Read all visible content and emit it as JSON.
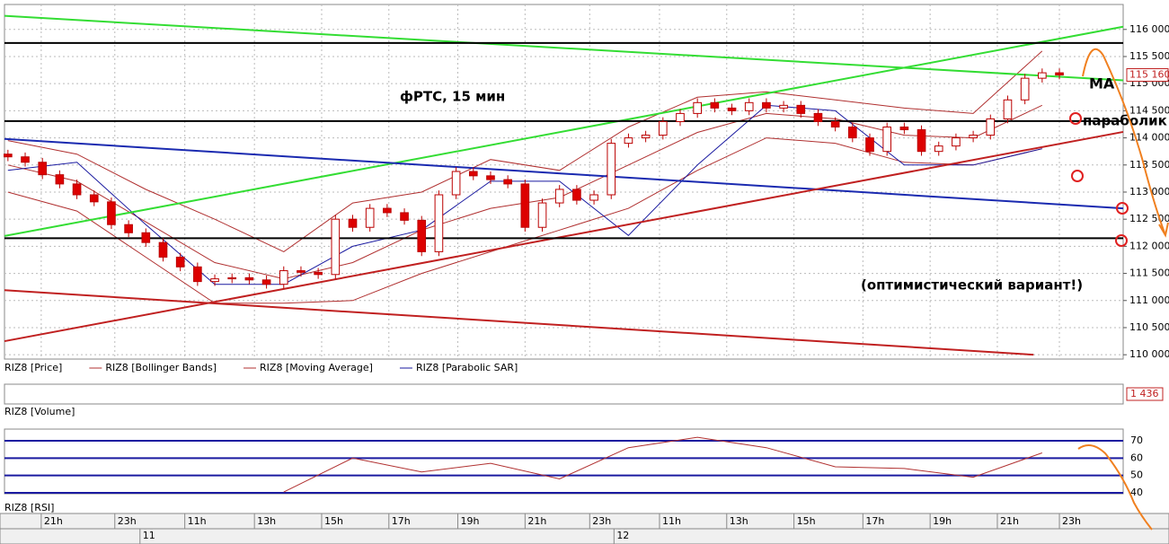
{
  "chart_data": [
    {
      "type": "candlestick",
      "title": "фРТС, 15 мин",
      "name": "RIZ8 [Price]",
      "xlim": [
        -0.2,
        64.7
      ],
      "ylim": [
        109920,
        116460
      ],
      "grid": true,
      "yticks": [
        {
          "value": 110000,
          "label": "110 000"
        },
        {
          "value": 110500,
          "label": "110 500"
        },
        {
          "value": 111000,
          "label": "111 000"
        },
        {
          "value": 111500,
          "label": "111 500"
        },
        {
          "value": 112000,
          "label": "112 000"
        },
        {
          "value": 112500,
          "label": "112 500"
        },
        {
          "value": 113000,
          "label": "113 000"
        },
        {
          "value": 113500,
          "label": "113 500"
        },
        {
          "value": 114000,
          "label": "114 000"
        },
        {
          "value": 114500,
          "label": "114 500"
        },
        {
          "value": 115000,
          "label": "115 000"
        },
        {
          "value": 115500,
          "label": "115 500"
        },
        {
          "value": 116000,
          "label": "116 000"
        }
      ],
      "up_color": "#ffffff",
      "down_color": "#dd0000",
      "outline_color": "#bb0000",
      "open": [
        113700,
        113650,
        113550,
        113320,
        113150,
        112950,
        112820,
        112400,
        112250,
        112070,
        111800,
        111620,
        111350,
        111400,
        111420,
        111380,
        111300,
        111550,
        111520,
        111480,
        112500,
        112350,
        112700,
        112620,
        112480,
        111900,
        112950,
        113380,
        113300,
        113230,
        113150,
        112350,
        112800,
        113050,
        112850,
        112950,
        113900,
        114000,
        114050,
        114300,
        114450,
        114650,
        114550,
        114500,
        114650,
        114550,
        114600,
        114450,
        114300,
        114200,
        114000,
        113750,
        114200,
        114150,
        113750,
        113850,
        114000,
        114050,
        114350,
        114700,
        115100,
        115200
      ],
      "high": [
        113780,
        113730,
        113630,
        113400,
        113230,
        113030,
        112900,
        112480,
        112330,
        112150,
        111880,
        111700,
        111480,
        111500,
        111500,
        111460,
        111630,
        111630,
        111600,
        112580,
        112580,
        112780,
        112780,
        112700,
        112560,
        113030,
        113460,
        113460,
        113380,
        113310,
        113230,
        112880,
        113130,
        113130,
        113030,
        113980,
        114080,
        114130,
        114380,
        114530,
        114730,
        114730,
        114630,
        114730,
        114730,
        114680,
        114680,
        114530,
        114380,
        114280,
        114080,
        114280,
        114280,
        114230,
        113930,
        114080,
        114130,
        114430,
        114780,
        115180,
        115280,
        115280
      ],
      "low": [
        113570,
        113470,
        113240,
        113070,
        112870,
        112740,
        112320,
        112170,
        111990,
        111720,
        111540,
        111270,
        111270,
        111320,
        111300,
        111220,
        111220,
        111440,
        111400,
        111400,
        112270,
        112270,
        112540,
        112400,
        111820,
        111820,
        112870,
        113220,
        113150,
        113070,
        112270,
        112270,
        112720,
        112770,
        112770,
        112870,
        113820,
        113920,
        113970,
        114220,
        114370,
        114470,
        114420,
        114420,
        114470,
        114470,
        114370,
        114220,
        114120,
        113920,
        113670,
        113670,
        114070,
        113670,
        113670,
        113770,
        113920,
        113970,
        114270,
        114620,
        115020,
        115080
      ],
      "close": [
        113650,
        113550,
        113320,
        113150,
        112950,
        112820,
        112400,
        112250,
        112070,
        111800,
        111620,
        111350,
        111400,
        111420,
        111380,
        111300,
        111550,
        111520,
        111480,
        112500,
        112350,
        112700,
        112620,
        112480,
        111900,
        112950,
        113380,
        113300,
        113230,
        113150,
        112350,
        112800,
        113050,
        112850,
        112950,
        113900,
        114000,
        114050,
        114300,
        114450,
        114650,
        114550,
        114500,
        114650,
        114550,
        114600,
        114450,
        114300,
        114200,
        114000,
        113750,
        114200,
        114150,
        113750,
        113850,
        114000,
        114050,
        114350,
        114700,
        115100,
        115200,
        115160
      ],
      "last_price": {
        "value": 115160,
        "label": "115 160"
      },
      "overlay_x": [
        0,
        4,
        8,
        12,
        16,
        20,
        24,
        28,
        32,
        36,
        40,
        44,
        48,
        52,
        56,
        60
      ],
      "series": [
        {
          "name": "RIZ8 [Bollinger Bands]",
          "color": "#b03030",
          "upper": [
            113950,
            113700,
            113050,
            112500,
            111900,
            112800,
            113000,
            113600,
            113400,
            114200,
            114750,
            114850,
            114700,
            114550,
            114450,
            115600
          ],
          "lower": [
            113000,
            112650,
            111800,
            110950,
            110950,
            111000,
            111500,
            111900,
            112300,
            112700,
            113400,
            114000,
            113900,
            113550,
            113500,
            113800
          ]
        },
        {
          "name": "RIZ8 [Moving Average]",
          "color": "#b03030",
          "values": [
            113500,
            113200,
            112450,
            111700,
            111400,
            111700,
            112300,
            112700,
            112900,
            113500,
            114100,
            114450,
            114350,
            114050,
            114000,
            114600
          ]
        },
        {
          "name": "RIZ8 [Parabolic SAR]",
          "color": "#1a1aa0",
          "values": [
            113400,
            113550,
            112400,
            111300,
            111300,
            112000,
            112300,
            113200,
            113200,
            112200,
            113500,
            114600,
            114500,
            113500,
            113500,
            113800
          ]
        }
      ],
      "trend_lines": [
        {
          "color": "#33dd33",
          "x": [
            -0.2,
            64.7
          ],
          "y": [
            116250,
            115060
          ]
        },
        {
          "color": "#33dd33",
          "x": [
            -0.2,
            64.7
          ],
          "y": [
            112190,
            116050
          ]
        },
        {
          "color": "#1a2ab0",
          "x": [
            -0.2,
            64.7
          ],
          "y": [
            113980,
            112700
          ]
        },
        {
          "color": "#c02020",
          "x": [
            -0.2,
            64.7
          ],
          "y": [
            110250,
            114110
          ]
        },
        {
          "color": "#c02020",
          "x": [
            -0.2,
            59.5
          ],
          "y": [
            111190,
            110000
          ]
        },
        {
          "color": "#000000",
          "x": [
            -0.2,
            64.7
          ],
          "y": [
            115750,
            115750
          ]
        },
        {
          "color": "#000000",
          "x": [
            -0.2,
            64.7
          ],
          "y": [
            114310,
            114310
          ]
        },
        {
          "color": "#000000",
          "x": [
            -0.2,
            64.7
          ],
          "y": [
            112150,
            112150
          ]
        }
      ],
      "annotations": [
        "МА",
        "параболик",
        "(оптимистический вариант!)"
      ]
    },
    {
      "type": "volume",
      "name": "RIZ8 [Volume]",
      "last_value": {
        "value": 1436,
        "label": "1 436"
      }
    },
    {
      "type": "line",
      "name": "RIZ8 [RSI]",
      "color": "#b03030",
      "level_color": "#1a1aa0",
      "ylim": [
        39.5,
        76.7
      ],
      "yticks": [
        70,
        60,
        50,
        40
      ],
      "x": [
        0,
        4,
        8,
        12,
        16,
        20,
        24,
        28,
        32,
        36,
        40,
        44,
        48,
        52,
        56,
        60
      ],
      "values": [
        null,
        null,
        null,
        null,
        40.5,
        60,
        52,
        57,
        48,
        66,
        72,
        66,
        55,
        54,
        49,
        63
      ],
      "xticks": [
        {
          "value": 1.93,
          "label": "21h"
        },
        {
          "value": 6.2,
          "label": "23h"
        },
        {
          "value": 10.26,
          "label": "11h"
        },
        {
          "value": 14.3,
          "label": "13h"
        },
        {
          "value": 18.2,
          "label": "15h"
        },
        {
          "value": 22.1,
          "label": "17h"
        },
        {
          "value": 26.1,
          "label": "19h"
        },
        {
          "value": 30,
          "label": "21h"
        },
        {
          "value": 33.75,
          "label": "23h"
        },
        {
          "value": 37.8,
          "label": "11h"
        },
        {
          "value": 41.7,
          "label": "13h"
        },
        {
          "value": 45.6,
          "label": "15h"
        },
        {
          "value": 49.6,
          "label": "17h"
        },
        {
          "value": 53.5,
          "label": "19h"
        },
        {
          "value": 57.4,
          "label": "21h"
        },
        {
          "value": 61,
          "label": "23h"
        }
      ],
      "date_ticks": [
        {
          "value": 7.66,
          "label": "11"
        },
        {
          "value": 35.16,
          "label": "12"
        }
      ]
    }
  ]
}
